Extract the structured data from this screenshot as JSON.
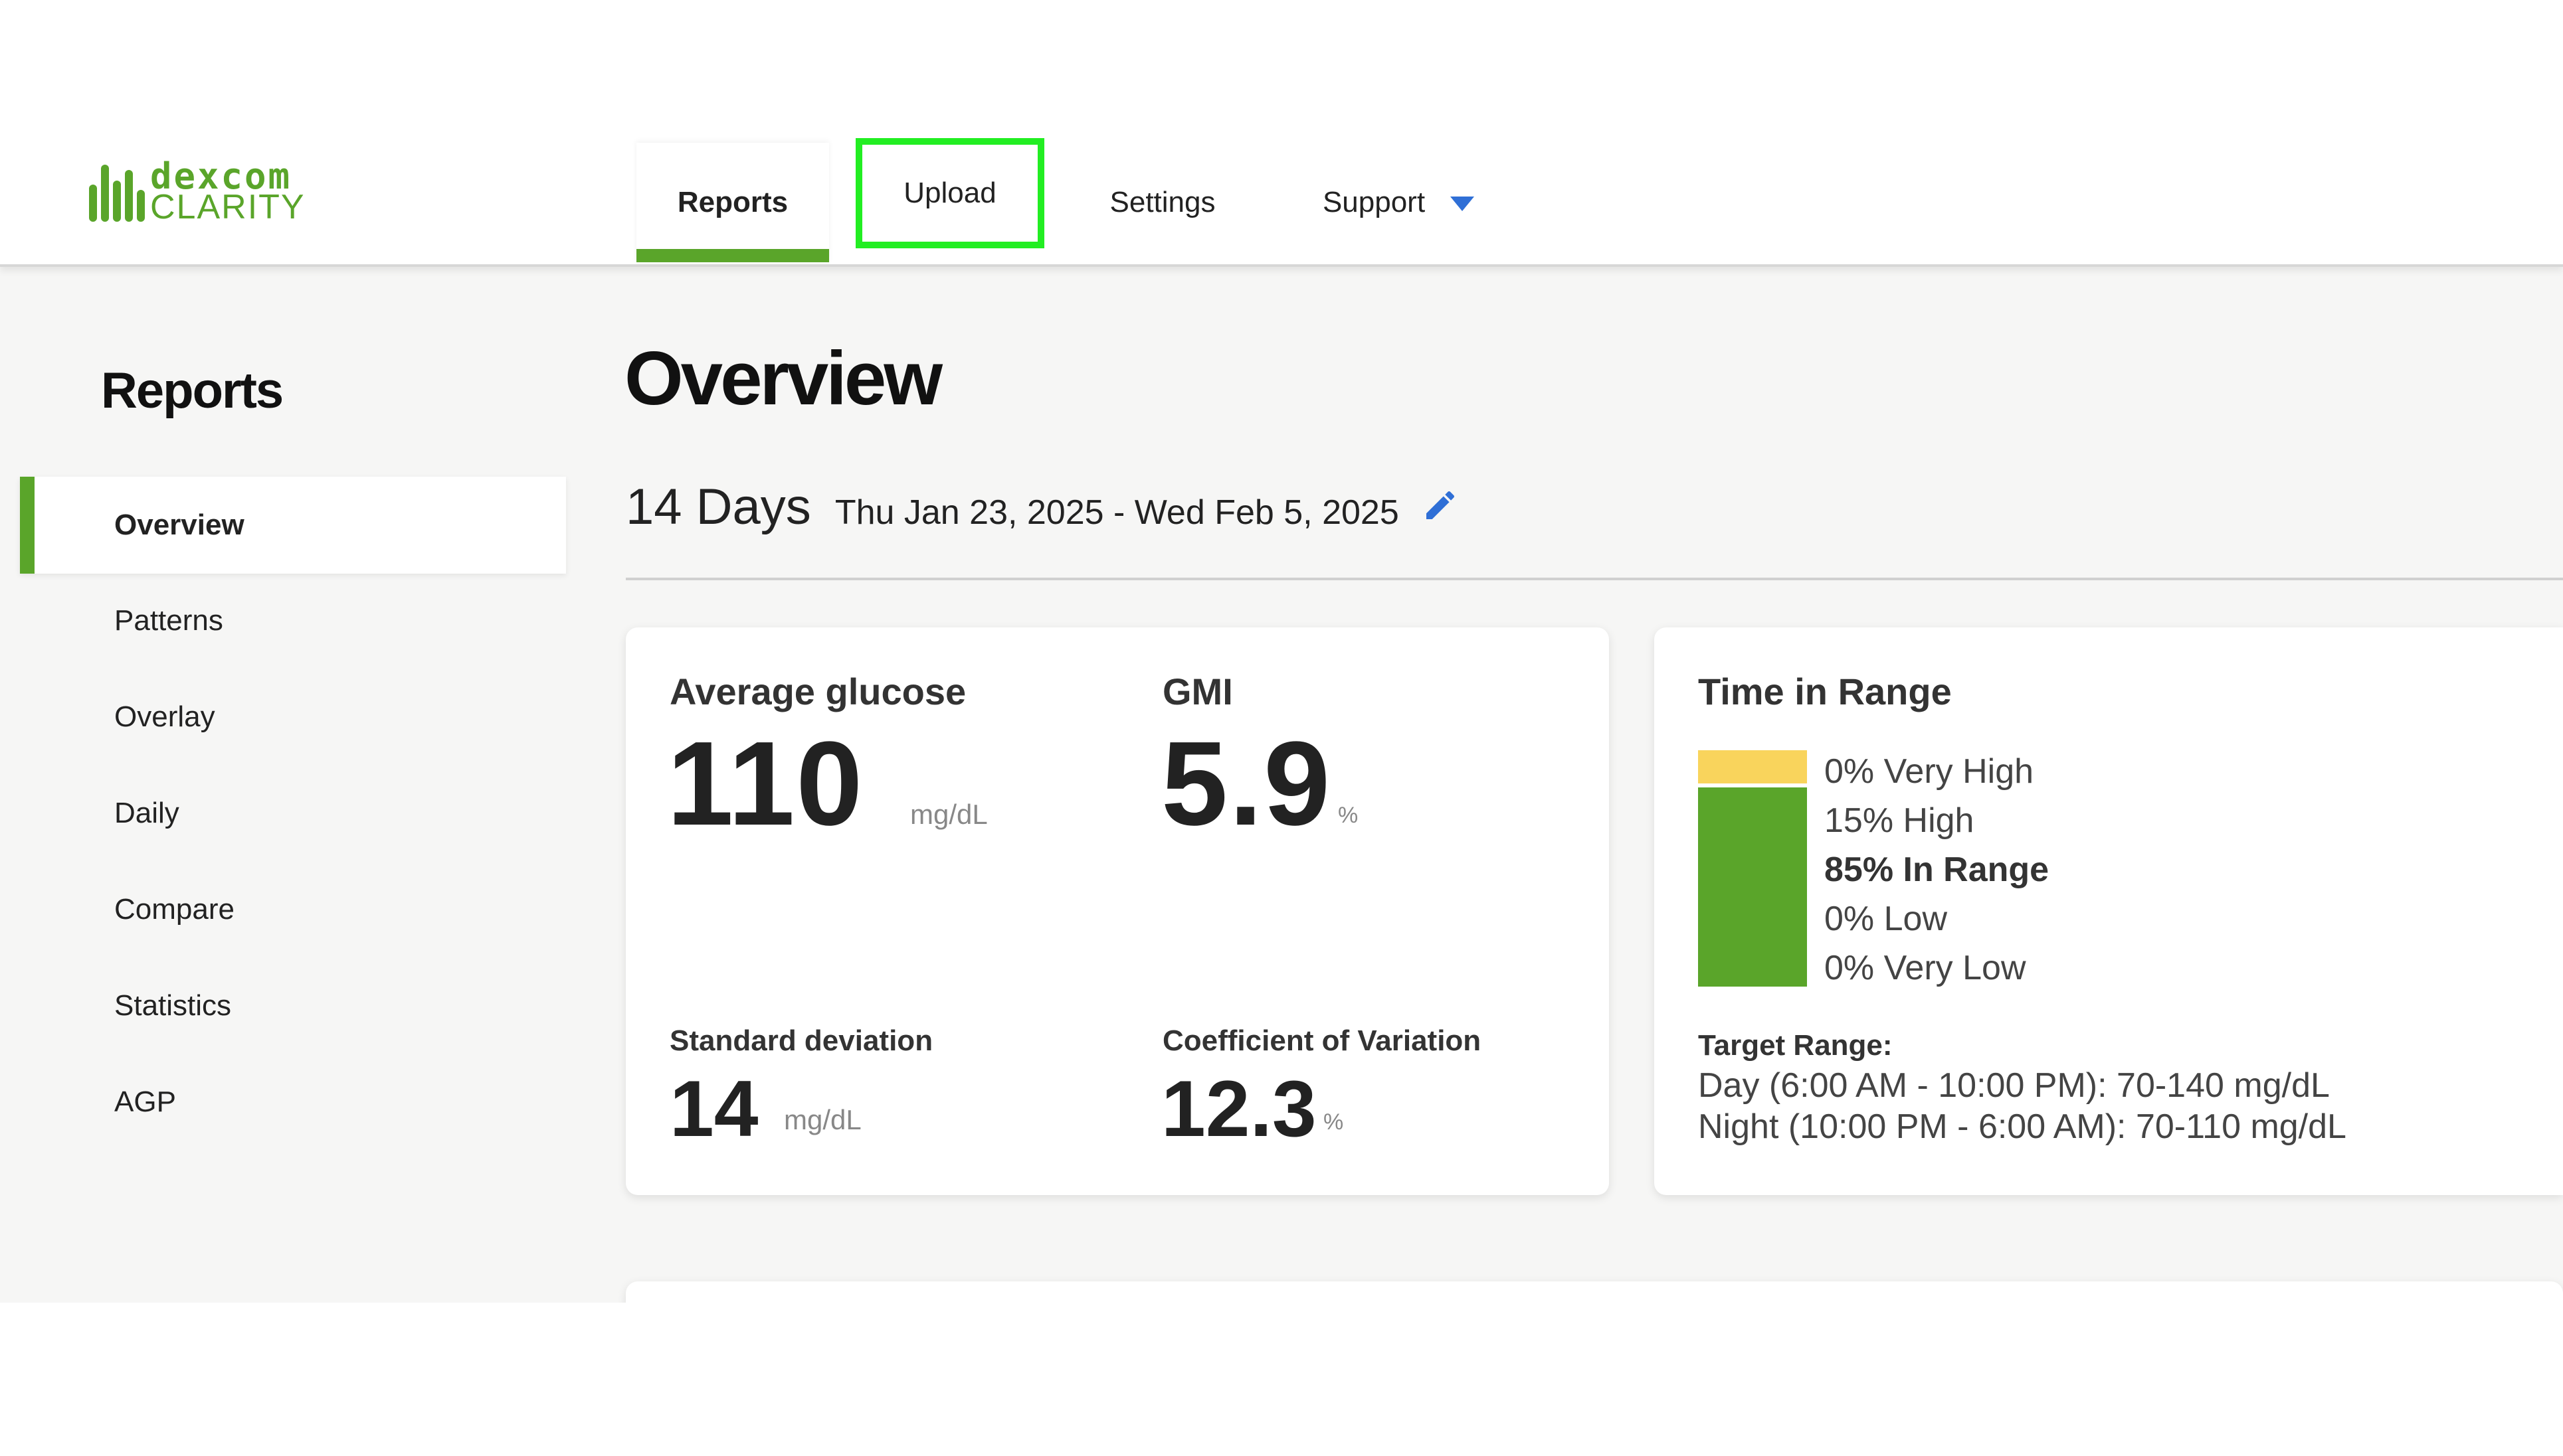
{
  "logo": {
    "line1": "dexcom",
    "line2": "CLARITY"
  },
  "nav": {
    "tabs": [
      {
        "label": "Reports"
      },
      {
        "label": "Upload"
      },
      {
        "label": "Settings"
      },
      {
        "label": "Support"
      }
    ]
  },
  "sidebar": {
    "title": "Reports",
    "items": [
      {
        "label": "Overview"
      },
      {
        "label": "Patterns"
      },
      {
        "label": "Overlay"
      },
      {
        "label": "Daily"
      },
      {
        "label": "Compare"
      },
      {
        "label": "Statistics"
      },
      {
        "label": "AGP"
      }
    ]
  },
  "main": {
    "title": "Overview",
    "range_days": "14 Days",
    "range_dates": "Thu Jan 23, 2025 - Wed Feb 5, 2025",
    "stats": {
      "avg_label": "Average glucose",
      "avg_value": "110",
      "avg_unit": "mg/dL",
      "gmi_label": "GMI",
      "gmi_value": "5.9",
      "gmi_unit": "%",
      "sd_label": "Standard deviation",
      "sd_value": "14",
      "sd_unit": "mg/dL",
      "cv_label": "Coefficient of Variation",
      "cv_value": "12.3",
      "cv_unit": "%"
    },
    "tir": {
      "title": "Time in Range",
      "legend": [
        "0% Very High",
        "15% High",
        "85% In Range",
        "0% Low",
        "0% Very Low"
      ],
      "target_title": "Target Range:",
      "target_day": "Day (6:00 AM - 10:00 PM): 70-140 mg/dL",
      "target_night": "Night (10:00 PM - 6:00 AM): 70-110 mg/dL"
    }
  },
  "colors": {
    "brand_green": "#5aa52a",
    "high_yellow": "#f9d45c",
    "highlight_box": "#22ee22",
    "accent_blue": "#2f6fd6"
  },
  "icons": [
    "edit-pencil-icon",
    "chevron-down-icon"
  ]
}
